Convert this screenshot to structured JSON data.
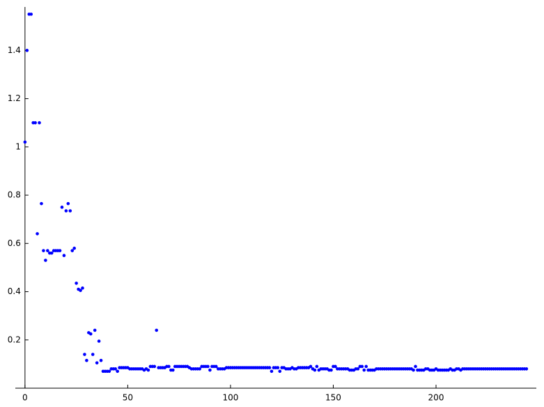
{
  "chart_data": {
    "type": "scatter",
    "color": "#0000ff",
    "xlim": [
      -4.7,
      248.8
    ],
    "ylim": [
      0,
      1.58
    ],
    "xticks": [
      0,
      50,
      100,
      150,
      200
    ],
    "yticks": [
      0.2,
      0.4,
      0.6,
      0.8,
      1,
      1.2,
      1.4
    ],
    "x": [
      0,
      1,
      2,
      3,
      4,
      5,
      6,
      7,
      8,
      9,
      10,
      11,
      12,
      13,
      14,
      15,
      16,
      17,
      18,
      19,
      20,
      21,
      22,
      23,
      24,
      25,
      26,
      27,
      28,
      29,
      30,
      31,
      32,
      33,
      34,
      35,
      36,
      37,
      38,
      39,
      40,
      41,
      42,
      43,
      44,
      45,
      46,
      47,
      48,
      49,
      50,
      51,
      52,
      53,
      54,
      55,
      56,
      57,
      58,
      59,
      60,
      61,
      62,
      63,
      64,
      65,
      66,
      67,
      68,
      69,
      70,
      71,
      72,
      73,
      74,
      75,
      76,
      77,
      78,
      79,
      80,
      81,
      82,
      83,
      84,
      85,
      86,
      87,
      88,
      89,
      90,
      91,
      92,
      93,
      94,
      95,
      96,
      97,
      98,
      99,
      100,
      101,
      102,
      103,
      104,
      105,
      106,
      107,
      108,
      109,
      110,
      111,
      112,
      113,
      114,
      115,
      116,
      117,
      118,
      119,
      120,
      121,
      122,
      123,
      124,
      125,
      126,
      127,
      128,
      129,
      130,
      131,
      132,
      133,
      134,
      135,
      136,
      137,
      138,
      139,
      140,
      141,
      142,
      143,
      144,
      145,
      146,
      147,
      148,
      149,
      150,
      151,
      152,
      153,
      154,
      155,
      156,
      157,
      158,
      159,
      160,
      161,
      162,
      163,
      164,
      165,
      166,
      167,
      168,
      169,
      170,
      171,
      172,
      173,
      174,
      175,
      176,
      177,
      178,
      179,
      180,
      181,
      182,
      183,
      184,
      185,
      186,
      187,
      188,
      189,
      190,
      191,
      192,
      193,
      194,
      195,
      196,
      197,
      198,
      199,
      200,
      201,
      202,
      203,
      204,
      205,
      206,
      207,
      208,
      209,
      210,
      211,
      212,
      213,
      214,
      215,
      216,
      217,
      218,
      219,
      220,
      221,
      222,
      223,
      224,
      225,
      226,
      227,
      228,
      229,
      230,
      231,
      232,
      233,
      234,
      235,
      236,
      237,
      238,
      239,
      240,
      241,
      242,
      243,
      244
    ],
    "values": [
      1.02,
      1.4,
      1.55,
      1.55,
      1.1,
      1.1,
      0.64,
      1.1,
      0.765,
      0.57,
      0.53,
      0.57,
      0.56,
      0.56,
      0.57,
      0.57,
      0.57,
      0.57,
      0.75,
      0.55,
      0.735,
      0.765,
      0.735,
      0.57,
      0.58,
      0.435,
      0.41,
      0.405,
      0.415,
      0.14,
      0.115,
      0.23,
      0.225,
      0.14,
      0.24,
      0.105,
      0.195,
      0.115,
      0.07,
      0.07,
      0.07,
      0.07,
      0.08,
      0.08,
      0.08,
      0.07,
      0.085,
      0.085,
      0.085,
      0.085,
      0.085,
      0.08,
      0.08,
      0.08,
      0.08,
      0.08,
      0.08,
      0.08,
      0.075,
      0.08,
      0.075,
      0.09,
      0.09,
      0.09,
      0.24,
      0.085,
      0.085,
      0.085,
      0.085,
      0.09,
      0.09,
      0.075,
      0.075,
      0.09,
      0.09,
      0.09,
      0.09,
      0.09,
      0.09,
      0.09,
      0.085,
      0.08,
      0.08,
      0.08,
      0.08,
      0.08,
      0.09,
      0.09,
      0.09,
      0.09,
      0.075,
      0.09,
      0.09,
      0.09,
      0.08,
      0.08,
      0.08,
      0.08,
      0.085,
      0.085,
      0.085,
      0.085,
      0.085,
      0.085,
      0.085,
      0.085,
      0.085,
      0.085,
      0.085,
      0.085,
      0.085,
      0.085,
      0.085,
      0.085,
      0.085,
      0.085,
      0.085,
      0.085,
      0.085,
      0.085,
      0.07,
      0.085,
      0.085,
      0.085,
      0.07,
      0.085,
      0.085,
      0.08,
      0.08,
      0.08,
      0.085,
      0.08,
      0.08,
      0.085,
      0.085,
      0.085,
      0.085,
      0.085,
      0.085,
      0.09,
      0.08,
      0.075,
      0.09,
      0.075,
      0.08,
      0.08,
      0.08,
      0.08,
      0.075,
      0.075,
      0.09,
      0.09,
      0.08,
      0.08,
      0.08,
      0.08,
      0.08,
      0.08,
      0.075,
      0.075,
      0.075,
      0.08,
      0.08,
      0.09,
      0.09,
      0.075,
      0.09,
      0.075,
      0.075,
      0.075,
      0.075,
      0.08,
      0.08,
      0.08,
      0.08,
      0.08,
      0.08,
      0.08,
      0.08,
      0.08,
      0.08,
      0.08,
      0.08,
      0.08,
      0.08,
      0.08,
      0.08,
      0.08,
      0.08,
      0.075,
      0.09,
      0.075,
      0.075,
      0.075,
      0.075,
      0.08,
      0.08,
      0.075,
      0.075,
      0.075,
      0.08,
      0.075,
      0.075,
      0.075,
      0.075,
      0.075,
      0.075,
      0.08,
      0.075,
      0.075,
      0.08,
      0.08,
      0.075,
      0.08,
      0.08,
      0.08,
      0.08,
      0.08,
      0.08,
      0.08,
      0.08,
      0.08,
      0.08,
      0.08,
      0.08,
      0.08,
      0.08,
      0.08,
      0.08,
      0.08,
      0.08,
      0.08,
      0.08,
      0.08,
      0.08,
      0.08,
      0.08,
      0.08,
      0.08,
      0.08,
      0.08,
      0.08,
      0.08,
      0.08,
      0.08
    ]
  }
}
